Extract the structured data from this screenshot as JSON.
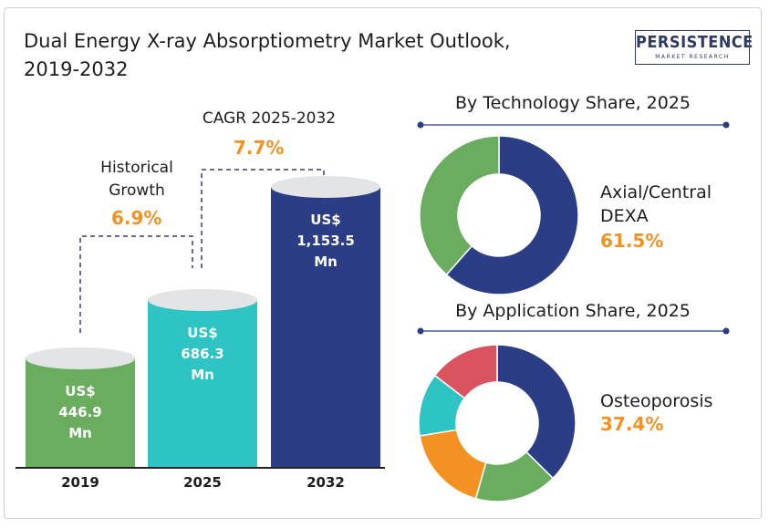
{
  "header": {
    "title_line1": "Dual Energy X-ray Absorptiometry Market Outlook,",
    "title_line2": "2019-2032",
    "logo_main": "PERSISTENCE",
    "logo_sub": "MARKET RESEARCH"
  },
  "colors": {
    "green": "#6bad5f",
    "teal": "#2ec4c4",
    "navy": "#2b3d84",
    "orange": "#f39223",
    "red": "#d9545f",
    "cap": "#e2e4e6"
  },
  "annotations": {
    "historical_label_line1": "Historical",
    "historical_label_line2": "Growth",
    "historical_value": "6.9%",
    "cagr_label": "CAGR 2025-2032",
    "cagr_value": "7.7%"
  },
  "chart_data": [
    {
      "type": "bar",
      "categories": [
        "2019",
        "2025",
        "2032"
      ],
      "values": [
        446.9,
        686.3,
        1153.5
      ],
      "value_labels": [
        "US$\n446.9\nMn",
        "US$\n686.3\nMn",
        "US$\n1,153.5\nMn"
      ],
      "colors": [
        "#6bad5f",
        "#2ec4c4",
        "#2b3d84"
      ]
    },
    {
      "type": "pie",
      "title": "By Technology Share, 2025",
      "slices": [
        {
          "label": "Axial/Central DEXA",
          "value": 61.5,
          "color": "#2b3d84"
        },
        {
          "label": "",
          "value": 38.5,
          "color": "#6bad5f"
        }
      ],
      "callout_line1": "Axial/Central",
      "callout_line2": "DEXA",
      "callout_value": "61.5%"
    },
    {
      "type": "pie",
      "title": "By Application Share, 2025",
      "slices": [
        {
          "label": "Osteoporosis",
          "value": 37.4,
          "color": "#2b3d84"
        },
        {
          "label": "",
          "value": 17,
          "color": "#6bad5f"
        },
        {
          "label": "",
          "value": 18,
          "color": "#f39223"
        },
        {
          "label": "",
          "value": 13,
          "color": "#2ec4c4"
        },
        {
          "label": "",
          "value": 14.6,
          "color": "#d9545f"
        }
      ],
      "callout_line1": "Osteoporosis",
      "callout_value": "37.4%"
    }
  ]
}
